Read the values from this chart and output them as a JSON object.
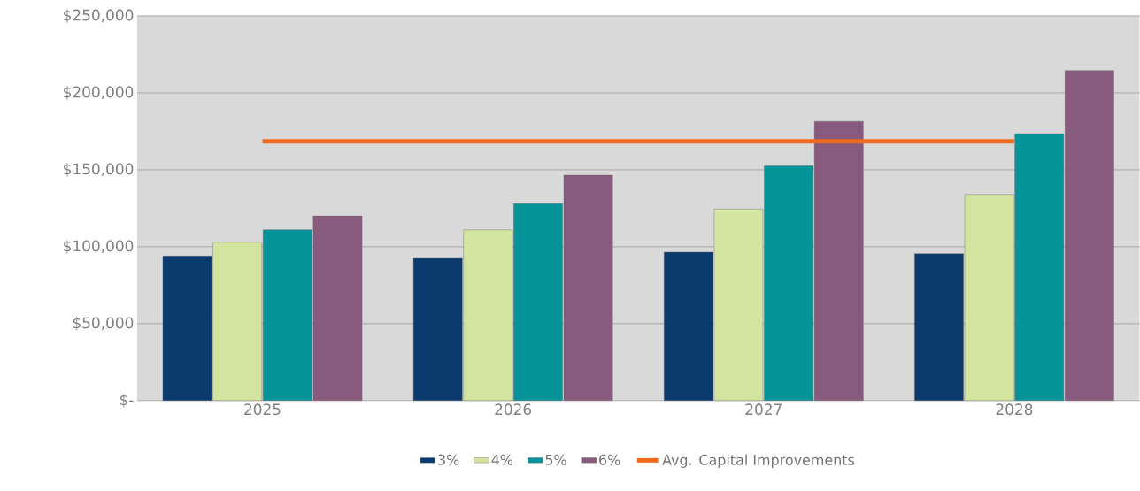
{
  "chart_data": {
    "type": "bar",
    "categories": [
      "2025",
      "2026",
      "2027",
      "2028"
    ],
    "series": [
      {
        "name": "3%",
        "color": "#0a3a6e",
        "values": [
          94000,
          92500,
          96500,
          95500
        ]
      },
      {
        "name": "4%",
        "color": "#d2e4a0",
        "values": [
          103000,
          111000,
          124500,
          134000
        ]
      },
      {
        "name": "5%",
        "color": "#06939a",
        "values": [
          111000,
          128000,
          152500,
          173500
        ]
      },
      {
        "name": "6%",
        "color": "#875a7e",
        "values": [
          120000,
          146500,
          181500,
          214500
        ]
      },
      {
        "name": "Avg. Capital Improvements",
        "type": "line",
        "color": "#f26b1d",
        "values": [
          168500,
          168500,
          168500,
          168500
        ]
      }
    ],
    "ylim": [
      0,
      250000
    ],
    "yticks": [
      {
        "value": 0,
        "label": "$-"
      },
      {
        "value": 50000,
        "label": "$50,000"
      },
      {
        "value": 100000,
        "label": "$100,000"
      },
      {
        "value": 150000,
        "label": "$150,000"
      },
      {
        "value": 200000,
        "label": "$200,000"
      },
      {
        "value": 250000,
        "label": "$250,000"
      }
    ],
    "grid": "y",
    "legend": "bottom"
  }
}
